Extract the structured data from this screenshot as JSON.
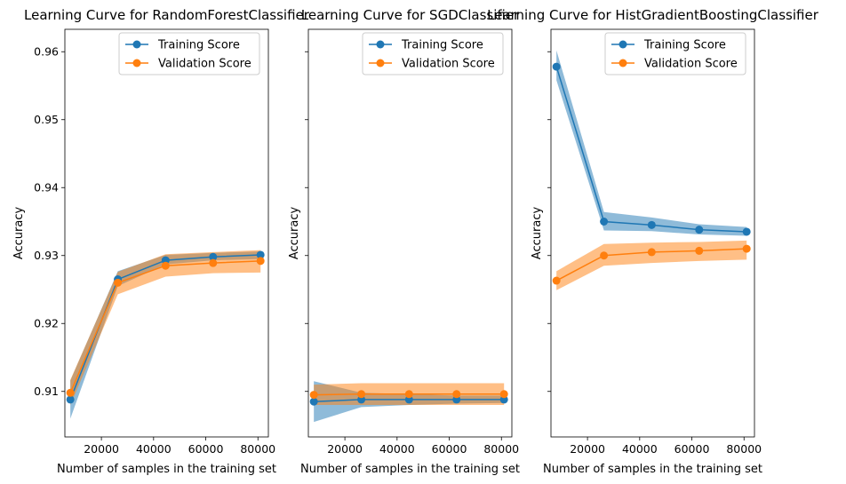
{
  "chart_data": [
    {
      "type": "line",
      "title": "Learning Curve for RandomForestClassifier",
      "xlabel": "Number of samples in the training set",
      "ylabel": "Accuracy",
      "xlim": [
        6000,
        84000
      ],
      "ylim": [
        0.9033,
        0.9633
      ],
      "xticks": [
        20000,
        40000,
        60000,
        80000
      ],
      "xtick_labels": [
        "20000",
        "40000",
        "60000",
        "80000"
      ],
      "yticks": [
        0.91,
        0.92,
        0.93,
        0.94,
        0.95,
        0.96
      ],
      "ytick_labels": [
        "0.91",
        "0.92",
        "0.93",
        "0.94",
        "0.95",
        "0.96"
      ],
      "show_yticklabels": true,
      "legend": {
        "position": "top-right",
        "entries": [
          "Training Score",
          "Validation Score"
        ]
      },
      "x": [
        8100,
        26300,
        44600,
        62800,
        81000
      ],
      "series": [
        {
          "name": "Training Score",
          "color": "#1f77b4",
          "values": [
            0.9088,
            0.9265,
            0.9293,
            0.9298,
            0.9301
          ],
          "band_low": [
            0.906,
            0.9255,
            0.9287,
            0.9293,
            0.9295
          ],
          "band_high": [
            0.9116,
            0.9277,
            0.9301,
            0.9304,
            0.9306
          ]
        },
        {
          "name": "Validation Score",
          "color": "#ff7f0e",
          "values": [
            0.9098,
            0.926,
            0.9285,
            0.9289,
            0.9292
          ],
          "band_low": [
            0.908,
            0.9243,
            0.9269,
            0.9274,
            0.9275
          ],
          "band_high": [
            0.9117,
            0.9276,
            0.9302,
            0.9305,
            0.9308
          ]
        }
      ]
    },
    {
      "type": "line",
      "title": "Learning Curve for SGDClassifier",
      "xlabel": "Number of samples in the training set",
      "ylabel": "Accuracy",
      "xlim": [
        6000,
        84000
      ],
      "ylim": [
        0.9033,
        0.9633
      ],
      "xticks": [
        20000,
        40000,
        60000,
        80000
      ],
      "xtick_labels": [
        "20000",
        "40000",
        "60000",
        "80000"
      ],
      "yticks": [
        0.91,
        0.92,
        0.93,
        0.94,
        0.95,
        0.96
      ],
      "ytick_labels": [
        "0.91",
        "0.92",
        "0.93",
        "0.94",
        "0.95",
        "0.96"
      ],
      "show_yticklabels": false,
      "legend": {
        "position": "top-right",
        "entries": [
          "Training Score",
          "Validation Score"
        ]
      },
      "x": [
        8100,
        26300,
        44600,
        62800,
        81000
      ],
      "series": [
        {
          "name": "Training Score",
          "color": "#1f77b4",
          "values": [
            0.9085,
            0.9088,
            0.9088,
            0.9088,
            0.9088
          ],
          "band_low": [
            0.9055,
            0.9077,
            0.908,
            0.9082,
            0.9083
          ],
          "band_high": [
            0.9115,
            0.9098,
            0.9096,
            0.9094,
            0.9094
          ]
        },
        {
          "name": "Validation Score",
          "color": "#ff7f0e",
          "values": [
            0.9095,
            0.9096,
            0.9096,
            0.9096,
            0.9096
          ],
          "band_low": [
            0.908,
            0.908,
            0.908,
            0.908,
            0.908
          ],
          "band_high": [
            0.911,
            0.9112,
            0.9112,
            0.9112,
            0.9112
          ]
        }
      ]
    },
    {
      "type": "line",
      "title": "Learning Curve for HistGradientBoostingClassifier",
      "xlabel": "Number of samples in the training set",
      "ylabel": "Accuracy",
      "xlim": [
        6000,
        84000
      ],
      "ylim": [
        0.9033,
        0.9633
      ],
      "xticks": [
        20000,
        40000,
        60000,
        80000
      ],
      "xtick_labels": [
        "20000",
        "40000",
        "60000",
        "80000"
      ],
      "yticks": [
        0.91,
        0.92,
        0.93,
        0.94,
        0.95,
        0.96
      ],
      "ytick_labels": [
        "0.91",
        "0.92",
        "0.93",
        "0.94",
        "0.95",
        "0.96"
      ],
      "show_yticklabels": false,
      "legend": {
        "position": "top-right",
        "entries": [
          "Training Score",
          "Validation Score"
        ]
      },
      "x": [
        8100,
        26300,
        44600,
        62800,
        81000
      ],
      "series": [
        {
          "name": "Training Score",
          "color": "#1f77b4",
          "values": [
            0.9578,
            0.935,
            0.9345,
            0.9338,
            0.9335
          ],
          "band_low": [
            0.9558,
            0.9337,
            0.9336,
            0.9331,
            0.9329
          ],
          "band_high": [
            0.9602,
            0.9364,
            0.9356,
            0.9346,
            0.9342
          ]
        },
        {
          "name": "Validation Score",
          "color": "#ff7f0e",
          "values": [
            0.9263,
            0.93,
            0.9305,
            0.9307,
            0.931
          ],
          "band_low": [
            0.9249,
            0.9285,
            0.9289,
            0.9292,
            0.9294
          ],
          "band_high": [
            0.9277,
            0.9317,
            0.9319,
            0.932,
            0.9322
          ]
        }
      ]
    }
  ]
}
